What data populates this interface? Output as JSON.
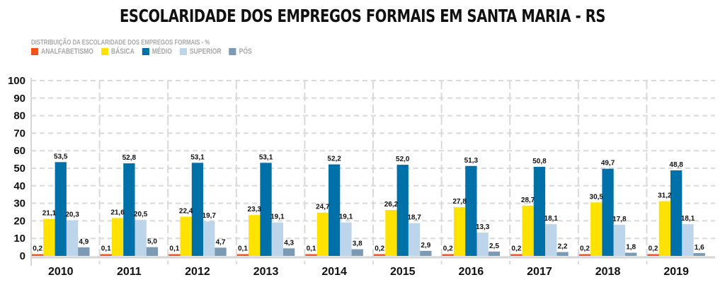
{
  "chart_data": {
    "type": "bar",
    "title": "ESCOLARIDADE DOS EMPREGOS FORMAIS EM SANTA MARIA - RS",
    "subtitle": "DISTRIBUIÇÃO DA ESCOLARIDADE DOS EMPREGOS FORMAIS - %",
    "xlabel": "",
    "ylabel": "",
    "ylim": [
      0,
      100
    ],
    "yticks": [
      0,
      10,
      20,
      30,
      40,
      50,
      60,
      70,
      80,
      90,
      100
    ],
    "grid": true,
    "legend_position": "top-left",
    "categories": [
      "2010",
      "2011",
      "2012",
      "2013",
      "2014",
      "2015",
      "2016",
      "2017",
      "2018",
      "2019"
    ],
    "series": [
      {
        "name": "ANALFABETISMO",
        "color": "#f4511e",
        "values": [
          0.2,
          0.1,
          0.1,
          0.1,
          0.1,
          0.2,
          0.2,
          0.2,
          0.2,
          0.2
        ],
        "labels": [
          "0,2",
          "0,1",
          "0,1",
          "0,1",
          "0,1",
          "0,2",
          "0,2",
          "0,2",
          "0,2",
          "0,2"
        ]
      },
      {
        "name": "BÁSICA",
        "color": "#ffe200",
        "values": [
          21.1,
          21.6,
          22.4,
          23.3,
          24.7,
          26.2,
          27.8,
          28.7,
          30.5,
          31.2
        ],
        "labels": [
          "21,1",
          "21,6",
          "22,4",
          "23,3",
          "24,7",
          "26,2",
          "27,8",
          "28,7",
          "30,5",
          "31,2"
        ]
      },
      {
        "name": "MÉDIO",
        "color": "#0070a8",
        "values": [
          53.5,
          52.8,
          53.1,
          53.1,
          52.2,
          52.0,
          51.3,
          50.8,
          49.7,
          48.8
        ],
        "labels": [
          "53,5",
          "52,8",
          "53,1",
          "53,1",
          "52,2",
          "52,0",
          "51,3",
          "50,8",
          "49,7",
          "48,8"
        ]
      },
      {
        "name": "SUPERIOR",
        "color": "#bdd5ea",
        "values": [
          20.3,
          20.5,
          19.7,
          19.1,
          19.1,
          18.7,
          13.3,
          18.1,
          17.8,
          18.1
        ],
        "labels": [
          "20,3",
          "20,5",
          "19,7",
          "19,1",
          "19,1",
          "18,7",
          "13,3",
          "18,1",
          "17,8",
          "18,1"
        ]
      },
      {
        "name": "PÓS",
        "color": "#7d9ab5",
        "values": [
          4.9,
          5.0,
          4.7,
          4.3,
          3.8,
          2.9,
          2.5,
          2.2,
          1.8,
          1.6
        ],
        "labels": [
          "4,9",
          "5,0",
          "4,7",
          "4,3",
          "3,8",
          "2,9",
          "2,5",
          "2,2",
          "1,8",
          "1,6"
        ]
      }
    ]
  }
}
